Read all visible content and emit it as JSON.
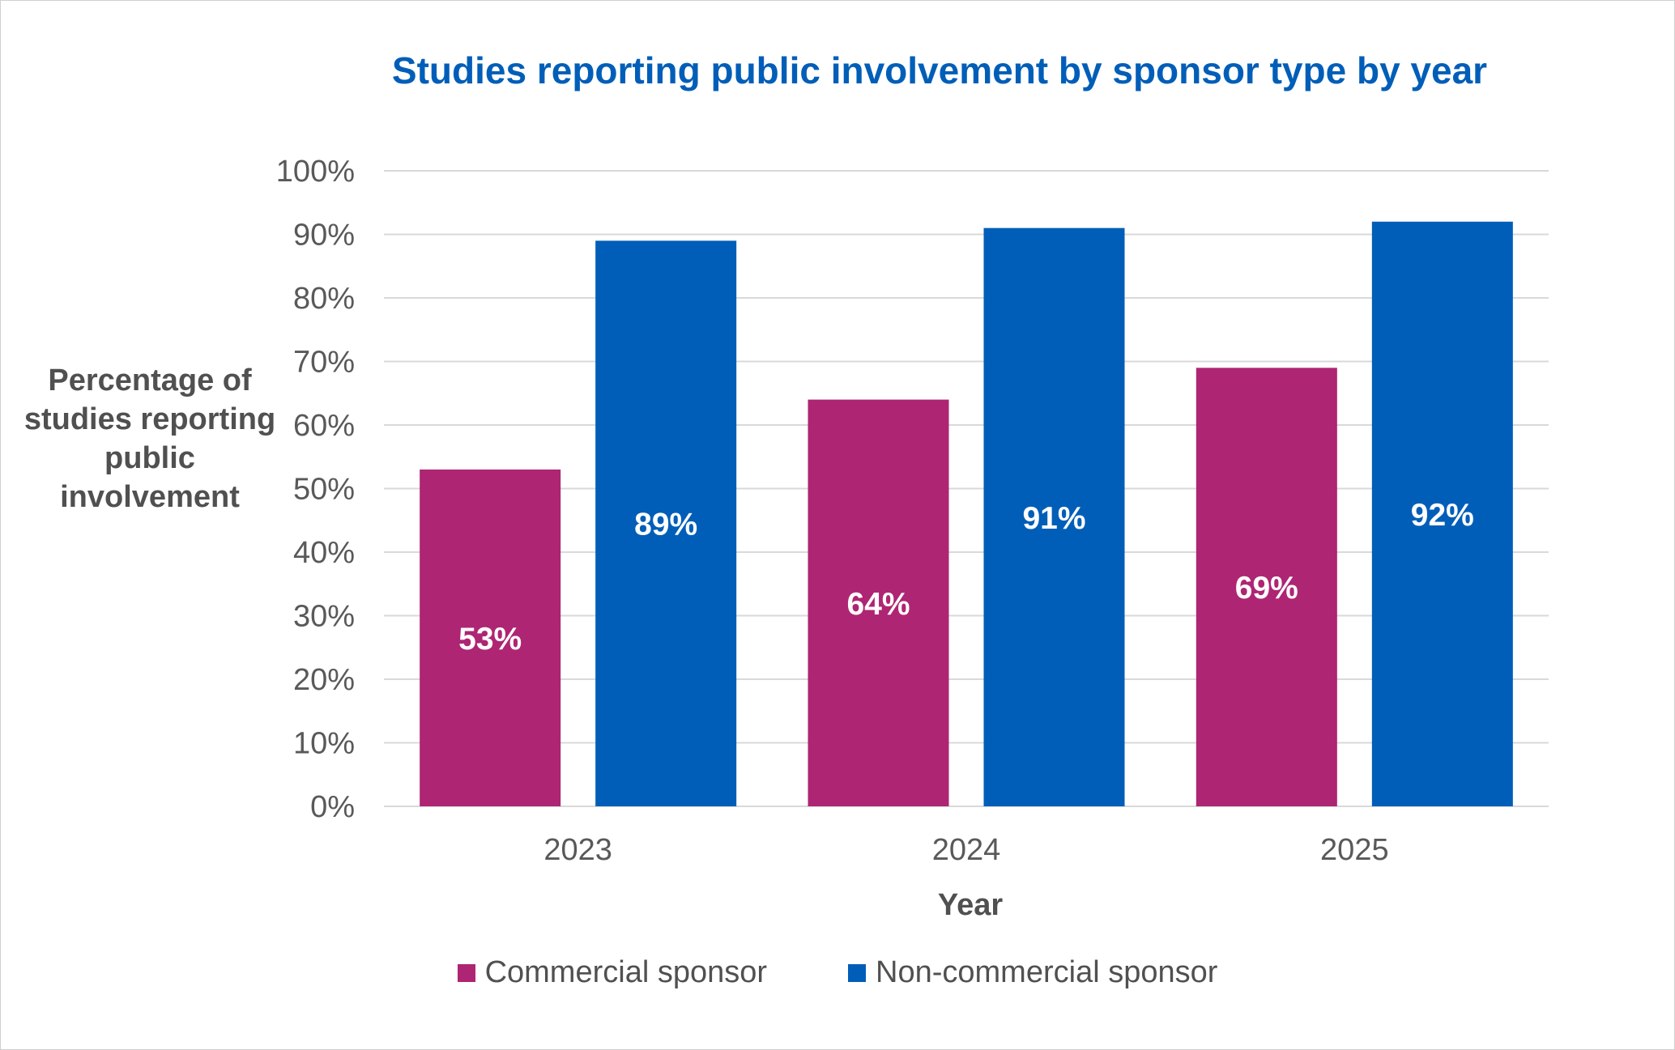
{
  "chart_data": {
    "type": "bar",
    "title": "Studies reporting public involvement by sponsor type by year",
    "xlabel": "Year",
    "ylabel": "Percentage of studies reporting public involvement",
    "categories": [
      "2023",
      "2024",
      "2025"
    ],
    "series": [
      {
        "name": "Commercial sponsor",
        "values": [
          53,
          64,
          69
        ],
        "labels": [
          "53%",
          "64%",
          "69%"
        ],
        "color": "#AE2573"
      },
      {
        "name": "Non-commercial sponsor",
        "values": [
          89,
          91,
          92
        ],
        "labels": [
          "89%",
          "91%",
          "92%"
        ],
        "color": "#005EB8"
      }
    ],
    "ylim": [
      0,
      100
    ],
    "yticks": [
      0,
      10,
      20,
      30,
      40,
      50,
      60,
      70,
      80,
      90,
      100
    ],
    "ytick_labels": [
      "0%",
      "10%",
      "20%",
      "30%",
      "40%",
      "50%",
      "60%",
      "70%",
      "80%",
      "90%",
      "100%"
    ],
    "grid": true,
    "legend_position": "bottom",
    "gridline_color": "#D9D9D9",
    "title_color": "#005EB8"
  }
}
